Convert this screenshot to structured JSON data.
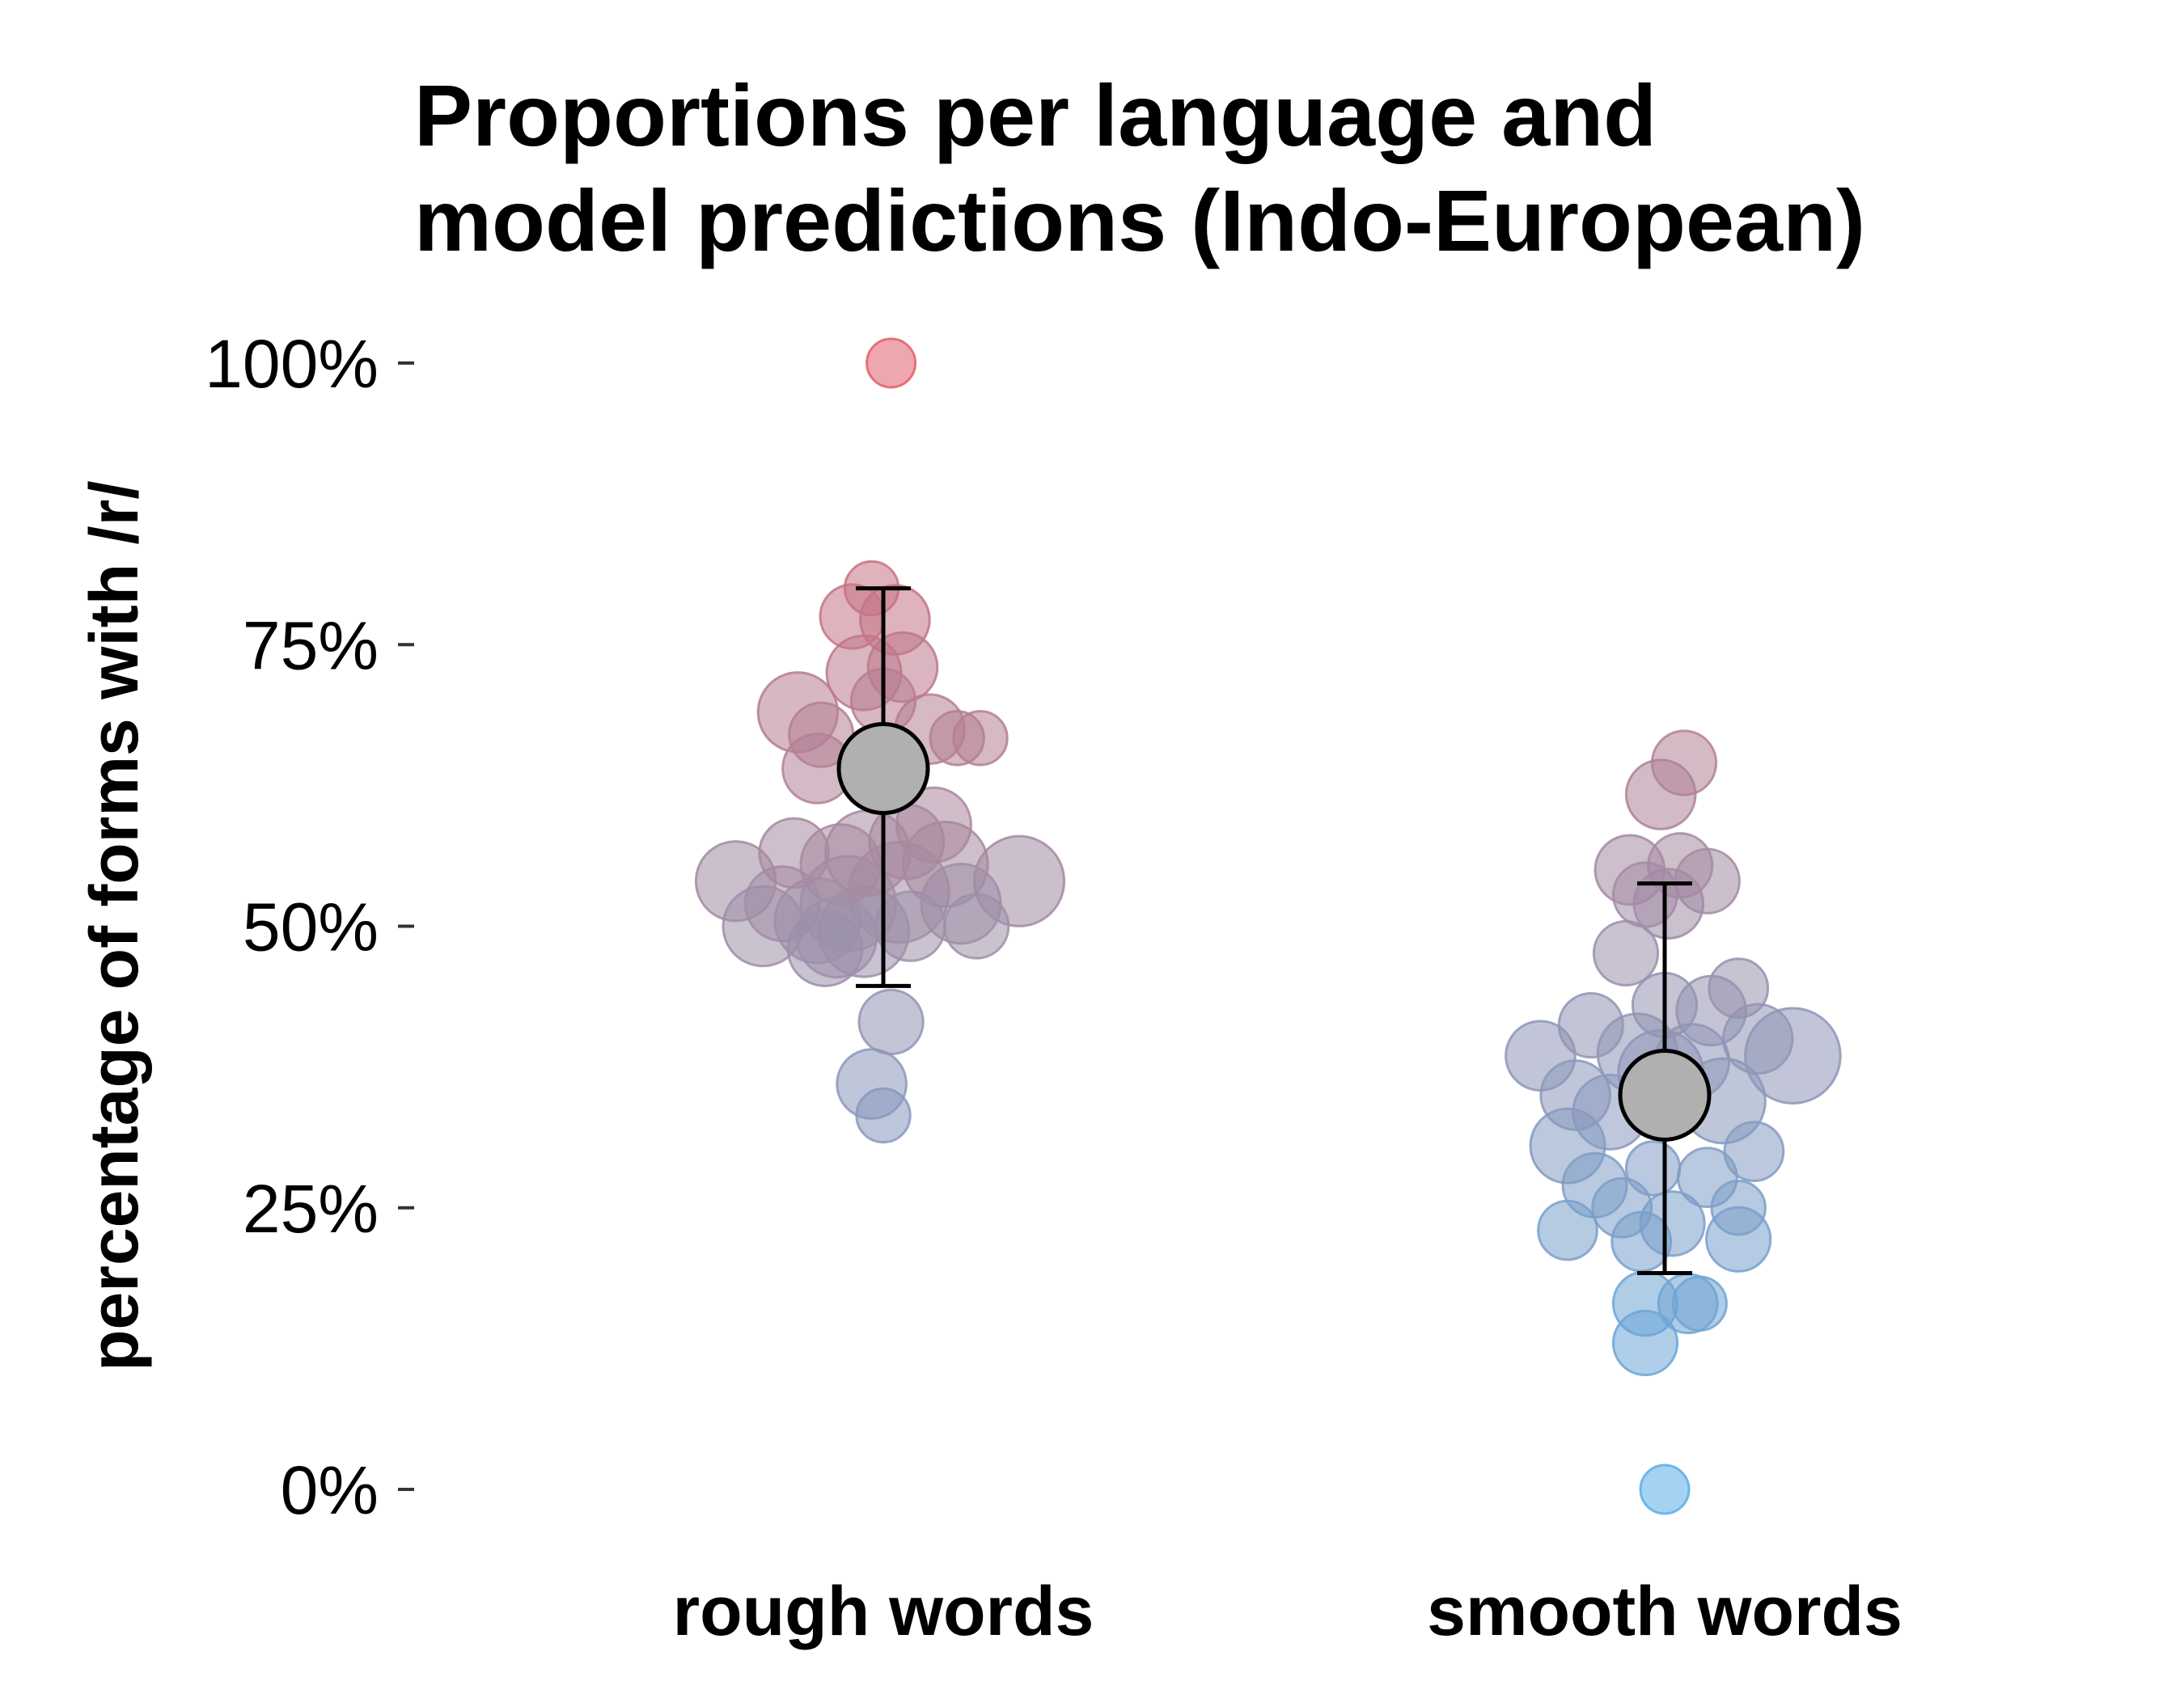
{
  "chart_data": {
    "type": "scatter",
    "title_lines": [
      "Proportions per language and",
      "model predictions (Indo-European)"
    ],
    "ylabel": "percentage of forms with /r/",
    "xlabel": "",
    "ylim": [
      0,
      1
    ],
    "yticks": [
      {
        "value": 0,
        "label": "0%"
      },
      {
        "value": 0.25,
        "label": "25%"
      },
      {
        "value": 0.5,
        "label": "50%"
      },
      {
        "value": 0.75,
        "label": "75%"
      },
      {
        "value": 1.0,
        "label": "100%"
      }
    ],
    "categories": [
      "rough words",
      "smooth words"
    ],
    "grid": false,
    "legend": "none",
    "color_scale": {
      "low": "#5aaee8",
      "mid": "#9e8fa8",
      "high": "#e0606a"
    },
    "model_predictions": [
      {
        "category": "rough words",
        "mean": 0.64,
        "lower": 0.447,
        "upper": 0.8
      },
      {
        "category": "smooth words",
        "mean": 0.35,
        "lower": 0.192,
        "upper": 0.538
      }
    ],
    "points": [
      {
        "category": "rough words",
        "jitter": 0.01,
        "y": 1.0,
        "size": 5
      },
      {
        "category": "rough words",
        "jitter": -0.015,
        "y": 0.8,
        "size": 6
      },
      {
        "category": "rough words",
        "jitter": -0.04,
        "y": 0.775,
        "size": 8
      },
      {
        "category": "rough words",
        "jitter": 0.015,
        "y": 0.772,
        "size": 9
      },
      {
        "category": "rough words",
        "jitter": -0.025,
        "y": 0.725,
        "size": 10
      },
      {
        "category": "rough words",
        "jitter": 0.025,
        "y": 0.73,
        "size": 9
      },
      {
        "category": "rough words",
        "jitter": -0.11,
        "y": 0.69,
        "size": 11
      },
      {
        "category": "rough words",
        "jitter": 0.0,
        "y": 0.7,
        "size": 8
      },
      {
        "category": "rough words",
        "jitter": 0.06,
        "y": 0.675,
        "size": 9
      },
      {
        "category": "rough words",
        "jitter": 0.095,
        "y": 0.667,
        "size": 6
      },
      {
        "category": "rough words",
        "jitter": 0.125,
        "y": 0.667,
        "size": 6
      },
      {
        "category": "rough words",
        "jitter": -0.08,
        "y": 0.67,
        "size": 8
      },
      {
        "category": "rough words",
        "jitter": -0.085,
        "y": 0.64,
        "size": 9
      },
      {
        "category": "rough words",
        "jitter": 0.065,
        "y": 0.59,
        "size": 10
      },
      {
        "category": "rough words",
        "jitter": -0.115,
        "y": 0.565,
        "size": 9
      },
      {
        "category": "rough words",
        "jitter": 0.03,
        "y": 0.575,
        "size": 10
      },
      {
        "category": "rough words",
        "jitter": -0.055,
        "y": 0.555,
        "size": 11
      },
      {
        "category": "rough words",
        "jitter": -0.02,
        "y": 0.565,
        "size": 12
      },
      {
        "category": "rough words",
        "jitter": 0.08,
        "y": 0.555,
        "size": 12
      },
      {
        "category": "rough words",
        "jitter": -0.19,
        "y": 0.54,
        "size": 11
      },
      {
        "category": "rough words",
        "jitter": 0.175,
        "y": 0.54,
        "size": 13
      },
      {
        "category": "rough words",
        "jitter": -0.13,
        "y": 0.52,
        "size": 10
      },
      {
        "category": "rough words",
        "jitter": -0.045,
        "y": 0.52,
        "size": 14
      },
      {
        "category": "rough words",
        "jitter": 0.02,
        "y": 0.53,
        "size": 15
      },
      {
        "category": "rough words",
        "jitter": 0.1,
        "y": 0.52,
        "size": 11
      },
      {
        "category": "rough words",
        "jitter": -0.085,
        "y": 0.505,
        "size": 12
      },
      {
        "category": "rough words",
        "jitter": -0.155,
        "y": 0.5,
        "size": 11
      },
      {
        "category": "rough words",
        "jitter": 0.035,
        "y": 0.5,
        "size": 9
      },
      {
        "category": "rough words",
        "jitter": 0.12,
        "y": 0.5,
        "size": 8
      },
      {
        "category": "rough words",
        "jitter": -0.06,
        "y": 0.49,
        "size": 11
      },
      {
        "category": "rough words",
        "jitter": -0.025,
        "y": 0.495,
        "size": 13
      },
      {
        "category": "rough words",
        "jitter": -0.075,
        "y": 0.48,
        "size": 10
      },
      {
        "category": "rough words",
        "jitter": 0.01,
        "y": 0.415,
        "size": 8
      },
      {
        "category": "rough words",
        "jitter": -0.015,
        "y": 0.36,
        "size": 9
      },
      {
        "category": "rough words",
        "jitter": 0.0,
        "y": 0.332,
        "size": 6
      },
      {
        "category": "smooth words",
        "jitter": 0.025,
        "y": 0.645,
        "size": 8
      },
      {
        "category": "smooth words",
        "jitter": -0.005,
        "y": 0.617,
        "size": 9
      },
      {
        "category": "smooth words",
        "jitter": -0.045,
        "y": 0.55,
        "size": 9
      },
      {
        "category": "smooth words",
        "jitter": 0.02,
        "y": 0.554,
        "size": 8
      },
      {
        "category": "smooth words",
        "jitter": -0.025,
        "y": 0.528,
        "size": 8
      },
      {
        "category": "smooth words",
        "jitter": 0.055,
        "y": 0.54,
        "size": 8
      },
      {
        "category": "smooth words",
        "jitter": 0.005,
        "y": 0.52,
        "size": 9
      },
      {
        "category": "smooth words",
        "jitter": -0.05,
        "y": 0.476,
        "size": 8
      },
      {
        "category": "smooth words",
        "jitter": 0.095,
        "y": 0.445,
        "size": 7
      },
      {
        "category": "smooth words",
        "jitter": 0.0,
        "y": 0.43,
        "size": 8
      },
      {
        "category": "smooth words",
        "jitter": 0.06,
        "y": 0.425,
        "size": 9
      },
      {
        "category": "smooth words",
        "jitter": -0.095,
        "y": 0.412,
        "size": 8
      },
      {
        "category": "smooth words",
        "jitter": 0.12,
        "y": 0.4,
        "size": 9
      },
      {
        "category": "smooth words",
        "jitter": 0.165,
        "y": 0.385,
        "size": 14
      },
      {
        "category": "smooth words",
        "jitter": -0.16,
        "y": 0.385,
        "size": 9
      },
      {
        "category": "smooth words",
        "jitter": -0.035,
        "y": 0.387,
        "size": 11
      },
      {
        "category": "smooth words",
        "jitter": 0.035,
        "y": 0.38,
        "size": 10
      },
      {
        "category": "smooth words",
        "jitter": -0.005,
        "y": 0.37,
        "size": 12
      },
      {
        "category": "smooth words",
        "jitter": 0.075,
        "y": 0.345,
        "size": 12
      },
      {
        "category": "smooth words",
        "jitter": -0.115,
        "y": 0.35,
        "size": 9
      },
      {
        "category": "smooth words",
        "jitter": -0.07,
        "y": 0.335,
        "size": 10
      },
      {
        "category": "smooth words",
        "jitter": -0.125,
        "y": 0.305,
        "size": 10
      },
      {
        "category": "smooth words",
        "jitter": 0.115,
        "y": 0.3,
        "size": 7
      },
      {
        "category": "smooth words",
        "jitter": -0.015,
        "y": 0.285,
        "size": 6
      },
      {
        "category": "smooth words",
        "jitter": 0.055,
        "y": 0.277,
        "size": 7
      },
      {
        "category": "smooth words",
        "jitter": -0.09,
        "y": 0.27,
        "size": 8
      },
      {
        "category": "smooth words",
        "jitter": -0.055,
        "y": 0.25,
        "size": 7
      },
      {
        "category": "smooth words",
        "jitter": 0.095,
        "y": 0.25,
        "size": 6
      },
      {
        "category": "smooth words",
        "jitter": 0.01,
        "y": 0.236,
        "size": 8
      },
      {
        "category": "smooth words",
        "jitter": -0.125,
        "y": 0.23,
        "size": 7
      },
      {
        "category": "smooth words",
        "jitter": -0.03,
        "y": 0.22,
        "size": 7
      },
      {
        "category": "smooth words",
        "jitter": 0.095,
        "y": 0.222,
        "size": 8
      },
      {
        "category": "smooth words",
        "jitter": -0.025,
        "y": 0.165,
        "size": 8
      },
      {
        "category": "smooth words",
        "jitter": 0.03,
        "y": 0.165,
        "size": 7
      },
      {
        "category": "smooth words",
        "jitter": 0.045,
        "y": 0.165,
        "size": 6
      },
      {
        "category": "smooth words",
        "jitter": -0.025,
        "y": 0.13,
        "size": 8
      },
      {
        "category": "smooth words",
        "jitter": 0.0,
        "y": 0.0,
        "size": 5
      }
    ]
  }
}
